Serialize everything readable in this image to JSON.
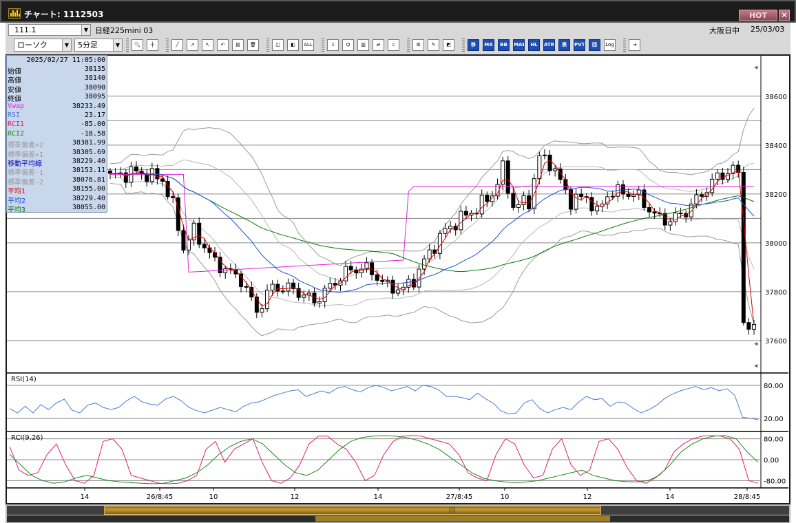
{
  "window": {
    "title": "チャート: 1112503",
    "hot_label": "HOT",
    "close_label": "✕"
  },
  "symbol_bar": {
    "code": "111.1",
    "name": "日経225mini 03",
    "market": "大阪日中",
    "date": "25/03/03"
  },
  "toolbar": {
    "chart_type": "ローソク",
    "interval": "5分足",
    "buttons": [
      {
        "name": "zoom",
        "glyph": "🔍"
      },
      {
        "name": "crosshair",
        "glyph": "┼"
      },
      {
        "name": "trendline",
        "glyph": "╱"
      },
      {
        "name": "draw",
        "glyph": "↗"
      },
      {
        "name": "cursor",
        "glyph": "↖"
      },
      {
        "name": "undo",
        "glyph": "↶"
      },
      {
        "name": "list",
        "glyph": "▤"
      },
      {
        "name": "trash",
        "glyph": "🗑"
      },
      {
        "name": "candle-zoom-in",
        "glyph": "◫"
      },
      {
        "name": "candle-zoom-out",
        "glyph": "◧"
      },
      {
        "name": "all",
        "glyph": "ALL"
      },
      {
        "name": "download",
        "glyph": "⇩"
      },
      {
        "name": "search",
        "glyph": "Q"
      },
      {
        "name": "bars",
        "glyph": "▥"
      },
      {
        "name": "split",
        "glyph": "⇌"
      },
      {
        "name": "blank",
        "glyph": "▫"
      },
      {
        "name": "settings",
        "glyph": "⚙"
      },
      {
        "name": "tool",
        "glyph": "✎"
      },
      {
        "name": "color",
        "glyph": "◩"
      },
      {
        "name": "ind-moving-average",
        "glyph": "移"
      },
      {
        "name": "ind-ma",
        "glyph": "MA"
      },
      {
        "name": "ind-bb",
        "glyph": "BB"
      },
      {
        "name": "ind-mae",
        "glyph": "MAE"
      },
      {
        "name": "ind-hl",
        "glyph": "HL"
      },
      {
        "name": "ind-atr",
        "glyph": "ATR"
      },
      {
        "name": "ind-pivot-table",
        "glyph": "表"
      },
      {
        "name": "ind-pvt",
        "glyph": "PVT"
      },
      {
        "name": "ind-box",
        "glyph": "回"
      },
      {
        "name": "log-scale",
        "glyph": "Log"
      },
      {
        "name": "export",
        "glyph": "⇥"
      }
    ]
  },
  "info_panel": {
    "datetime": "2025/02/27  11:05:00",
    "rows": [
      {
        "label": "始値",
        "value": "38135",
        "color": "#000000"
      },
      {
        "label": "高値",
        "value": "38140",
        "color": "#000000"
      },
      {
        "label": "安値",
        "value": "38090",
        "color": "#000000"
      },
      {
        "label": "終値",
        "value": "38095",
        "color": "#000000"
      },
      {
        "label": "Vwap",
        "value": "38233.49",
        "color": "#e020e0"
      },
      {
        "label": "RSI",
        "value": "23.17",
        "color": "#4a7ad8"
      },
      {
        "label": "RCI1",
        "value": "-85.00",
        "color": "#e0206a"
      },
      {
        "label": "RCI2",
        "value": "-18.58",
        "color": "#1a8a1a"
      },
      {
        "label": "標準偏差+2",
        "value": "38381.99",
        "color": "#9a9a9a"
      },
      {
        "label": "標準偏差+1",
        "value": "38305.69",
        "color": "#9a9a9a"
      },
      {
        "label": "移動平均線",
        "value": "38229.40",
        "color": "#0000b0"
      },
      {
        "label": "標準偏差-1",
        "value": "38153.11",
        "color": "#9a9a9a"
      },
      {
        "label": "標準偏差-2",
        "value": "38076.81",
        "color": "#9a9a9a"
      },
      {
        "label": "平均1",
        "value": "38155.00",
        "color": "#e00000"
      },
      {
        "label": "平均2",
        "value": "38229.40",
        "color": "#1a4fd8"
      },
      {
        "label": "平均3",
        "value": "38055.00",
        "color": "#0a7a0a"
      }
    ]
  },
  "chart_data": [
    {
      "type": "candlestick",
      "title": "",
      "y_ticks": [
        38600,
        38400,
        38200,
        38000,
        37800,
        37600
      ],
      "ylim": [
        37470,
        38760
      ],
      "x_tick_labels": [
        "14",
        "26/8:45",
        "10",
        "12",
        "14",
        "27/8:45",
        "10",
        "12",
        "14",
        "28/8:45"
      ],
      "close_path": [
        [
          0,
          38270
        ],
        [
          5,
          38290
        ],
        [
          10,
          38260
        ],
        [
          12,
          38150
        ],
        [
          14,
          37980
        ],
        [
          16,
          38050
        ],
        [
          20,
          37920
        ],
        [
          25,
          37850
        ],
        [
          28,
          37720
        ],
        [
          31,
          37820
        ],
        [
          35,
          37810
        ],
        [
          39,
          37760
        ],
        [
          42,
          37820
        ],
        [
          45,
          37880
        ],
        [
          48,
          37900
        ],
        [
          50,
          37880
        ],
        [
          53,
          37820
        ],
        [
          56,
          37810
        ],
        [
          58,
          37850
        ],
        [
          61,
          37960
        ],
        [
          64,
          38050
        ],
        [
          67,
          38100
        ],
        [
          70,
          38140
        ],
        [
          73,
          38200
        ],
        [
          75,
          38300
        ],
        [
          77,
          38150
        ],
        [
          80,
          38170
        ],
        [
          82,
          38350
        ],
        [
          84,
          38330
        ],
        [
          86,
          38250
        ],
        [
          88,
          38170
        ],
        [
          91,
          38190
        ],
        [
          93,
          38120
        ],
        [
          95,
          38200
        ],
        [
          98,
          38210
        ],
        [
          101,
          38190
        ],
        [
          104,
          38110
        ],
        [
          107,
          38090
        ],
        [
          110,
          38130
        ],
        [
          113,
          38200
        ],
        [
          116,
          38270
        ],
        [
          119,
          38300
        ],
        [
          120,
          38280
        ],
        [
          121,
          37700
        ],
        [
          122,
          37640
        ],
        [
          123,
          37650
        ]
      ],
      "overlay_series": [
        {
          "name": "平均1",
          "color": "#e00000"
        },
        {
          "name": "平均2",
          "color": "#1a4fd8"
        },
        {
          "name": "平均3",
          "color": "#0a7a0a"
        },
        {
          "name": "Vwap",
          "color": "#e020e0"
        },
        {
          "name": "標準偏差+2",
          "color": "#9a9a9a"
        },
        {
          "name": "標準偏差-2",
          "color": "#9a9a9a"
        }
      ]
    },
    {
      "type": "line",
      "title": "RSI(14)",
      "y_ticks": [
        80,
        20
      ],
      "ylim": [
        0,
        100
      ],
      "series": [
        {
          "name": "RSI",
          "color": "#4a7ad8",
          "values": [
            38,
            30,
            42,
            30,
            45,
            36,
            48,
            55,
            35,
            30,
            44,
            48,
            40,
            36,
            40,
            52,
            60,
            50,
            46,
            44,
            55,
            60,
            52,
            40,
            34,
            30,
            35,
            40,
            36,
            32,
            42,
            48,
            50,
            56,
            62,
            66,
            70,
            72,
            60,
            65,
            70,
            66,
            75,
            78,
            72,
            68,
            76,
            80,
            76,
            70,
            74,
            78,
            70,
            80,
            78,
            72,
            60,
            60,
            58,
            54,
            66,
            56,
            48,
            34,
            28,
            30,
            48,
            54,
            38,
            30,
            36,
            40,
            36,
            50,
            60,
            54,
            56,
            42,
            50,
            48,
            38,
            30,
            36,
            44,
            56,
            64,
            70,
            74,
            78,
            72,
            76,
            70,
            74,
            62,
            22,
            20,
            18
          ]
        }
      ]
    },
    {
      "type": "line",
      "title": "RCI(9,26)",
      "y_ticks": [
        80,
        0,
        -80
      ],
      "ylim": [
        -100,
        100
      ],
      "series": [
        {
          "name": "RCI1",
          "color": "#e0206a",
          "values": [
            50,
            -40,
            -60,
            -50,
            20,
            60,
            -20,
            -80,
            -90,
            -60,
            70,
            80,
            40,
            -60,
            -70,
            -80,
            -90,
            -92,
            -90,
            -80,
            -60,
            40,
            70,
            -10,
            40,
            60,
            80,
            -10,
            -80,
            -90,
            -70,
            -20,
            60,
            90,
            90,
            60,
            40,
            -10,
            -80,
            -60,
            20,
            70,
            90,
            92,
            90,
            80,
            70,
            60,
            20,
            -50,
            -70,
            -80,
            20,
            80,
            60,
            -20,
            -70,
            -60,
            40,
            80,
            -20,
            -60,
            -40,
            70,
            80,
            40,
            -30,
            -80,
            -90,
            -70,
            -40,
            30,
            60,
            80,
            90,
            92,
            90,
            80,
            40,
            -80,
            -90
          ]
        },
        {
          "name": "RCI2",
          "color": "#1a8a1a",
          "values": [
            20,
            -20,
            -60,
            -80,
            -90,
            -85,
            -70,
            -60,
            -70,
            -80,
            -85,
            -88,
            -90,
            -92,
            -90,
            -80,
            -70,
            -50,
            -20,
            20,
            50,
            70,
            80,
            60,
            20,
            -20,
            -50,
            -60,
            -40,
            0,
            40,
            70,
            85,
            90,
            92,
            90,
            85,
            75,
            60,
            40,
            10,
            -20,
            -50,
            -70,
            -80,
            -85,
            -88,
            -85,
            -80,
            -70,
            -60,
            -50,
            -40,
            -60,
            -70,
            -80,
            -84,
            -85,
            -80,
            -60,
            -20,
            30,
            60,
            80,
            90,
            92,
            80,
            30,
            -10
          ]
        }
      ]
    }
  ]
}
